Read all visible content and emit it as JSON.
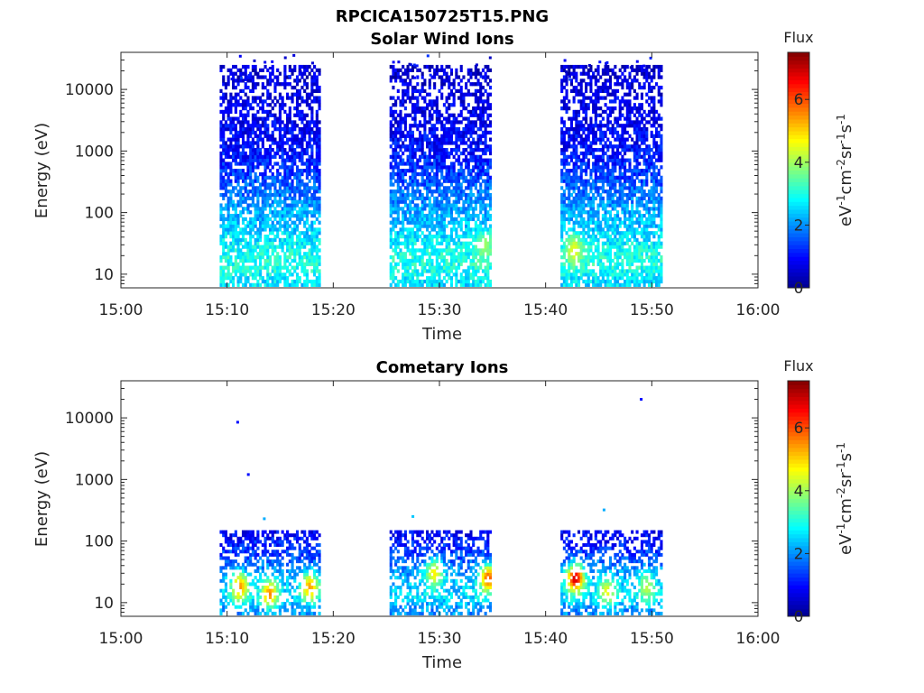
{
  "figure": {
    "title": "RPCICA150725T15.PNG"
  },
  "colormap": [
    "#00008f",
    "#0000ff",
    "#0080ff",
    "#00ffff",
    "#80ff80",
    "#ffff00",
    "#ff8000",
    "#ff0000",
    "#800000"
  ],
  "chart_data": [
    {
      "type": "heatmap",
      "title": "Solar Wind Ions",
      "xlabel": "Time",
      "ylabel": "Energy (eV)",
      "x_ticks": [
        "15:00",
        "15:10",
        "15:20",
        "15:30",
        "15:40",
        "15:50",
        "16:00"
      ],
      "xlim_minutes": [
        0,
        60
      ],
      "y_scale": "log",
      "y_ticks": [
        "10",
        "100",
        "1000",
        "10000"
      ],
      "ylim": [
        6,
        40000
      ],
      "colorbar": {
        "title": "Flux",
        "label": "eV-1cm-2sr-1s-1",
        "ticks": [
          "0",
          "2",
          "4",
          "6"
        ],
        "range": [
          0,
          7.5
        ]
      },
      "data_intervals_minutes": [
        [
          9.3,
          18.8
        ],
        [
          25.3,
          34.9
        ],
        [
          41.4,
          51.0
        ]
      ],
      "flux_profile": {
        "energy_eV": [
          8,
          12,
          20,
          35,
          60,
          100,
          200,
          500,
          1000,
          3000,
          10000,
          25000
        ],
        "typical_flux": [
          2.6,
          3.0,
          3.0,
          2.7,
          2.4,
          2.2,
          1.8,
          1.3,
          1.0,
          0.8,
          0.7,
          0.5
        ]
      },
      "hotspots": [
        {
          "time_min": 42.7,
          "energy_eV": 25,
          "flux": 4.6
        },
        {
          "time_min": 34.2,
          "energy_eV": 30,
          "flux": 4.0
        }
      ],
      "scattered_points": []
    },
    {
      "type": "heatmap",
      "title": "Cometary Ions",
      "xlabel": "Time",
      "ylabel": "Energy (eV)",
      "x_ticks": [
        "15:00",
        "15:10",
        "15:20",
        "15:30",
        "15:40",
        "15:50",
        "16:00"
      ],
      "xlim_minutes": [
        0,
        60
      ],
      "y_scale": "log",
      "y_ticks": [
        "10",
        "100",
        "1000",
        "10000"
      ],
      "ylim": [
        6,
        40000
      ],
      "colorbar": {
        "title": "Flux",
        "label": "eV-1cm-2sr-1s-1",
        "ticks": [
          "0",
          "2",
          "4",
          "6"
        ],
        "range": [
          0,
          7.5
        ]
      },
      "data_intervals_minutes": [
        [
          9.3,
          18.8
        ],
        [
          25.3,
          34.9
        ],
        [
          41.4,
          51.0
        ]
      ],
      "max_energy_eV": 150,
      "flux_profile": {
        "energy_eV": [
          8,
          12,
          20,
          35,
          60,
          100,
          150
        ],
        "typical_flux": [
          2.0,
          2.6,
          2.4,
          2.0,
          1.4,
          1.1,
          0.8
        ]
      },
      "hotspots": [
        {
          "time_min": 11.2,
          "energy_eV": 18,
          "flux": 5.5
        },
        {
          "time_min": 14.0,
          "energy_eV": 14,
          "flux": 5.6
        },
        {
          "time_min": 17.8,
          "energy_eV": 18,
          "flux": 5.4
        },
        {
          "time_min": 29.5,
          "energy_eV": 30,
          "flux": 4.8
        },
        {
          "time_min": 34.6,
          "energy_eV": 25,
          "flux": 6.0
        },
        {
          "time_min": 42.8,
          "energy_eV": 25,
          "flux": 7.0
        },
        {
          "time_min": 45.8,
          "energy_eV": 15,
          "flux": 4.6
        },
        {
          "time_min": 49.5,
          "energy_eV": 18,
          "flux": 4.2
        }
      ],
      "scattered_points": [
        {
          "time_min": 11.0,
          "energy_eV": 8500,
          "flux": 1.0
        },
        {
          "time_min": 12.0,
          "energy_eV": 1200,
          "flux": 1.0
        },
        {
          "time_min": 49.0,
          "energy_eV": 20000,
          "flux": 1.0
        },
        {
          "time_min": 13.5,
          "energy_eV": 230,
          "flux": 2.2
        },
        {
          "time_min": 27.5,
          "energy_eV": 250,
          "flux": 2.4
        },
        {
          "time_min": 45.5,
          "energy_eV": 320,
          "flux": 2.2
        }
      ]
    }
  ]
}
